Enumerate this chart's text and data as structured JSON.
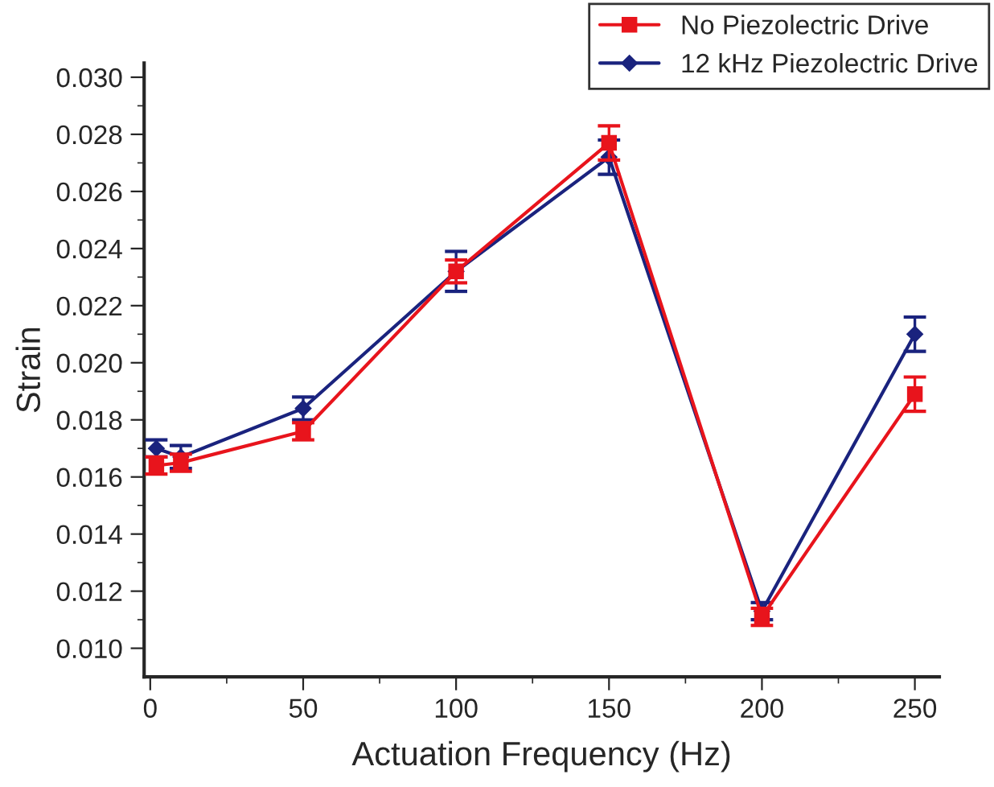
{
  "chart_data": {
    "type": "line",
    "xlabel": "Actuation Frequency (Hz)",
    "ylabel": "Strain",
    "x": [
      2,
      10,
      50,
      100,
      150,
      200,
      250
    ],
    "series": [
      {
        "name": "No Piezolectric Drive",
        "color": "#e8141c",
        "marker": "square",
        "values": [
          0.0164,
          0.0165,
          0.0176,
          0.0232,
          0.0277,
          0.0111,
          0.0189
        ],
        "errors": [
          0.0003,
          0.0003,
          0.0003,
          0.0004,
          0.0006,
          0.0003,
          0.0006
        ]
      },
      {
        "name": "12 kHz Piezolectric Drive",
        "color": "#1a237e",
        "marker": "diamond",
        "values": [
          0.017,
          0.0167,
          0.0184,
          0.0232,
          0.0272,
          0.0113,
          0.021
        ],
        "errors": [
          0.0003,
          0.0004,
          0.0004,
          0.0007,
          0.0006,
          0.0003,
          0.0006
        ]
      }
    ],
    "xlim": [
      -2,
      258
    ],
    "xticks": [
      0,
      50,
      100,
      150,
      200,
      250
    ],
    "ylim": [
      0.009,
      0.0305
    ],
    "yticks": [
      {
        "value": 0.01,
        "label": "0.010"
      },
      {
        "value": 0.012,
        "label": "0.012"
      },
      {
        "value": 0.014,
        "label": "0.014"
      },
      {
        "value": 0.016,
        "label": "0.016"
      },
      {
        "value": 0.018,
        "label": "0.018"
      },
      {
        "value": 0.02,
        "label": "0.020"
      },
      {
        "value": 0.022,
        "label": "0.022"
      },
      {
        "value": 0.024,
        "label": "0.024"
      },
      {
        "value": 0.026,
        "label": "0.026"
      },
      {
        "value": 0.028,
        "label": "0.028"
      },
      {
        "value": 0.03,
        "label": "0.030"
      }
    ],
    "legend": "top right",
    "grid": false,
    "line_style": "solid"
  }
}
